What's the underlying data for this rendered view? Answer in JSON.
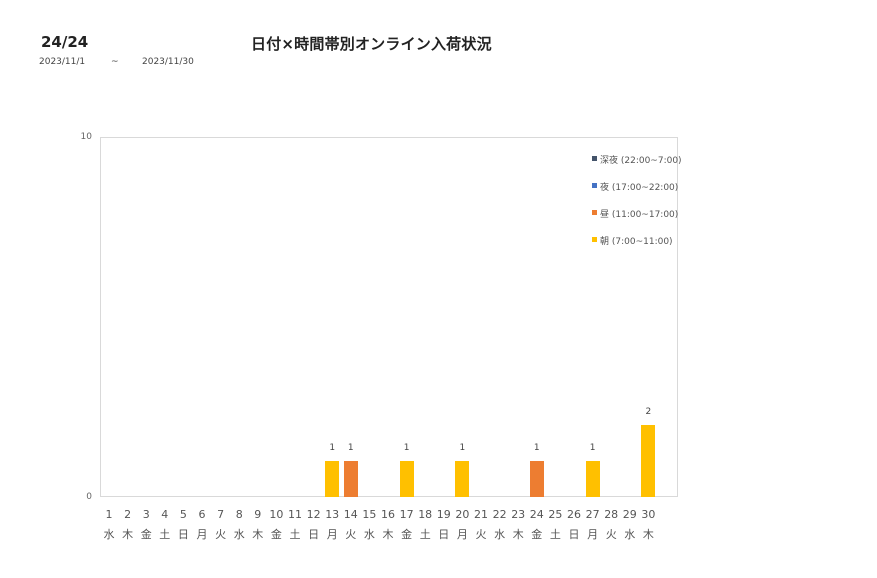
{
  "header": {
    "page": "24/24",
    "title": "日付×時間帯別オンライン入荷状況",
    "date_from": "2023/11/1",
    "date_sep": "~",
    "date_to": "2023/11/30"
  },
  "colors": {
    "深夜": "#44546a",
    "夜": "#4472c4",
    "昼": "#ed7d31",
    "朝": "#ffc000",
    "axis": "#d9d9d9"
  },
  "chart_data": {
    "type": "bar",
    "stacked": true,
    "title": "日付×時間帯別オンライン入荷状況",
    "xlabel": "",
    "ylabel": "",
    "ylim": [
      0,
      10
    ],
    "yticks": [
      "0",
      "10"
    ],
    "grid": false,
    "legend_position": "right-inside",
    "categories": [
      "1",
      "2",
      "3",
      "4",
      "5",
      "6",
      "7",
      "8",
      "9",
      "10",
      "11",
      "12",
      "13",
      "14",
      "15",
      "16",
      "17",
      "18",
      "19",
      "20",
      "21",
      "22",
      "23",
      "24",
      "25",
      "26",
      "27",
      "28",
      "29",
      "30"
    ],
    "weekdays": [
      "水",
      "木",
      "金",
      "土",
      "日",
      "月",
      "火",
      "水",
      "木",
      "金",
      "土",
      "日",
      "月",
      "火",
      "水",
      "木",
      "金",
      "土",
      "日",
      "月",
      "火",
      "水",
      "木",
      "金",
      "土",
      "日",
      "月",
      "火",
      "水",
      "木"
    ],
    "series": [
      {
        "name": "深夜 (22:00~7:00)",
        "key": "深夜",
        "values": [
          0,
          0,
          0,
          0,
          0,
          0,
          0,
          0,
          0,
          0,
          0,
          0,
          0,
          0,
          0,
          0,
          0,
          0,
          0,
          0,
          0,
          0,
          0,
          0,
          0,
          0,
          0,
          0,
          0,
          0
        ]
      },
      {
        "name": "夜 (17:00~22:00)",
        "key": "夜",
        "values": [
          0,
          0,
          0,
          0,
          0,
          0,
          0,
          0,
          0,
          0,
          0,
          0,
          0,
          0,
          0,
          0,
          0,
          0,
          0,
          0,
          0,
          0,
          0,
          0,
          0,
          0,
          0,
          0,
          0,
          0
        ]
      },
      {
        "name": "昼 (11:00~17:00)",
        "key": "昼",
        "values": [
          0,
          0,
          0,
          0,
          0,
          0,
          0,
          0,
          0,
          0,
          0,
          0,
          0,
          1,
          0,
          0,
          0,
          0,
          0,
          0,
          0,
          0,
          0,
          1,
          0,
          0,
          0,
          0,
          0,
          0
        ]
      },
      {
        "name": "朝 (7:00~11:00)",
        "key": "朝",
        "values": [
          0,
          0,
          0,
          0,
          0,
          0,
          0,
          0,
          0,
          0,
          0,
          0,
          1,
          0,
          0,
          0,
          1,
          0,
          0,
          1,
          0,
          0,
          0,
          0,
          0,
          0,
          1,
          0,
          0,
          2
        ]
      }
    ],
    "totals": [
      0,
      0,
      0,
      0,
      0,
      0,
      0,
      0,
      0,
      0,
      0,
      0,
      1,
      1,
      0,
      0,
      1,
      0,
      0,
      1,
      0,
      0,
      0,
      1,
      0,
      0,
      1,
      0,
      0,
      2
    ]
  },
  "legend": [
    {
      "label": "深夜 (22:00~7:00)",
      "key": "深夜"
    },
    {
      "label": "夜 (17:00~22:00)",
      "key": "夜"
    },
    {
      "label": "昼 (11:00~17:00)",
      "key": "昼"
    },
    {
      "label": "朝 (7:00~11:00)",
      "key": "朝"
    }
  ]
}
